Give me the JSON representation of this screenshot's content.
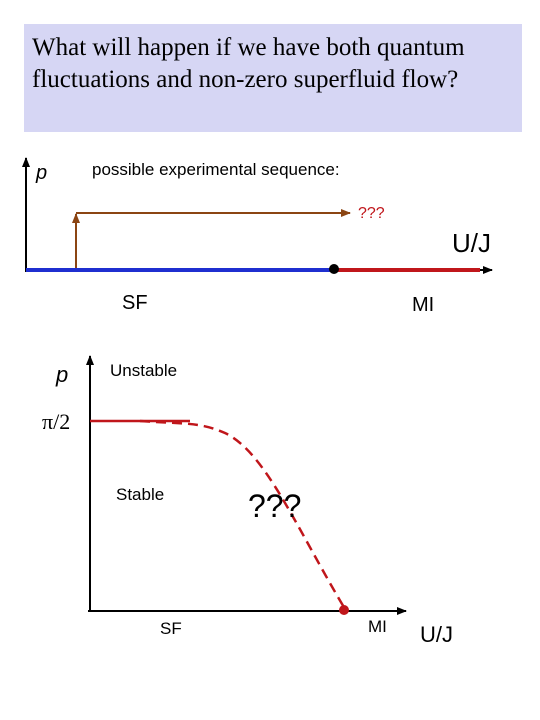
{
  "title": {
    "line1": "What will happen if we have both quantum",
    "line2": "fluctuations and non-zero superfluid flow?"
  },
  "top_diagram": {
    "y_axis_label": "p",
    "caption": "possible experimental sequence:",
    "unknown": "???",
    "x_axis_label": "U/J",
    "left_region": "SF",
    "right_region": "MI"
  },
  "bottom_diagram": {
    "y_axis_label": "p",
    "y_tick": "π/2",
    "upper_region": "Unstable",
    "lower_region": "Stable",
    "unknown": "???",
    "left_label": "SF",
    "right_label": "MI",
    "x_axis_label": "U/J"
  },
  "colors": {
    "title_background": "#d6d6f4",
    "superfluid_line": "#1f2fd0",
    "mott_line": "#c0161b",
    "sequence_arrow": "#8b4513",
    "boundary": "#c0161b"
  }
}
